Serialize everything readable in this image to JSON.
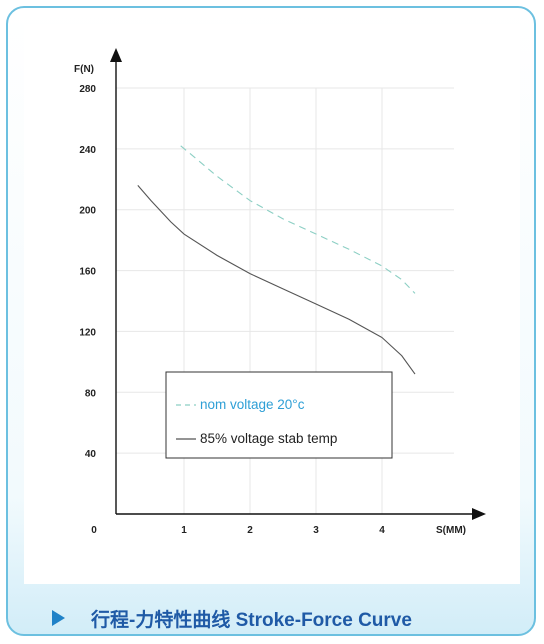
{
  "caption": {
    "title": "行程-力特性曲线 Stroke-Force Curve",
    "color": "#1f5aa6"
  },
  "chart_data": {
    "type": "line",
    "xlabel": "S(MM)",
    "ylabel": "F(N)",
    "xlim": [
      0,
      4.5
    ],
    "ylim": [
      0,
      280
    ],
    "xticks": [
      0,
      1,
      2,
      3,
      4
    ],
    "xtick_labels": [
      "0",
      "1",
      "2",
      "3",
      "4"
    ],
    "yticks": [
      40,
      80,
      120,
      160,
      200,
      240,
      280
    ],
    "ytick_labels": [
      "40",
      "80",
      "120",
      "160",
      "200",
      "240",
      "280"
    ],
    "grid": true,
    "legend": "lower-right",
    "series": [
      {
        "name": "nom  voltage 20°c",
        "style": "dashed",
        "color": "#8ccfc4",
        "legend_color": "#2e9fd6",
        "x": [
          0.95,
          1.2,
          1.5,
          2.0,
          2.5,
          3.0,
          3.5,
          4.0,
          4.3,
          4.5
        ],
        "y": [
          242,
          233,
          222,
          206,
          194,
          184,
          174,
          163,
          154,
          145
        ]
      },
      {
        "name": "85%  voltage stab temp",
        "style": "solid",
        "color": "#555555",
        "legend_color": "#222222",
        "x": [
          0.3,
          0.5,
          0.8,
          1.0,
          1.5,
          2.0,
          2.5,
          3.0,
          3.5,
          4.0,
          4.3,
          4.5
        ],
        "y": [
          216,
          206,
          192,
          184,
          170,
          158,
          148,
          138,
          128,
          116,
          104,
          92
        ]
      }
    ]
  }
}
